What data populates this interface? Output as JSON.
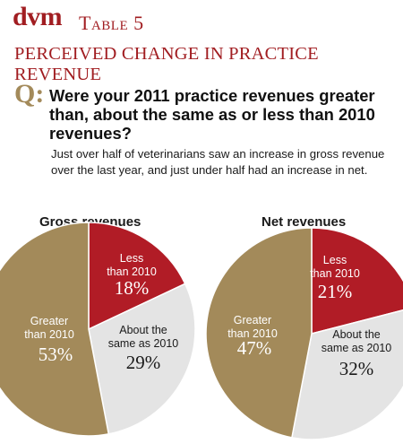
{
  "header": {
    "logo": "dvm",
    "table_label": "Table 5",
    "subtitle": "PERCEIVED CHANGE IN PRACTICE REVENUE"
  },
  "question": {
    "prefix": "Q:",
    "text": "Were your 2011 practice revenues greater than, about the same as or less than 2010 revenues?",
    "description": "Just over half of veterinarians saw an increase in gross revenue over the last year, and just under half had an increase in net."
  },
  "colors": {
    "brand_red": "#a11d21",
    "less": "#b11c26",
    "same": "#e4e4e4",
    "greater": "#a38a5a"
  },
  "chart_data": [
    {
      "type": "pie",
      "title": "Gross revenues",
      "slices": [
        {
          "label_lines": [
            "Less",
            "than 2010"
          ],
          "value": 18,
          "display": "18%",
          "color": "#b11c26",
          "text_color": "#ffffff"
        },
        {
          "label_lines": [
            "About the",
            "same as 2010"
          ],
          "value": 29,
          "display": "29%",
          "color": "#e4e4e4",
          "text_color": "#1a1a1a"
        },
        {
          "label_lines": [
            "Greater",
            "than 2010"
          ],
          "value": 53,
          "display": "53%",
          "color": "#a38a5a",
          "text_color": "#ffffff"
        }
      ]
    },
    {
      "type": "pie",
      "title": "Net revenues",
      "slices": [
        {
          "label_lines": [
            "Less",
            "than 2010"
          ],
          "value": 21,
          "display": "21%",
          "color": "#b11c26",
          "text_color": "#ffffff"
        },
        {
          "label_lines": [
            "About the",
            "same as 2010"
          ],
          "value": 32,
          "display": "32%",
          "color": "#e4e4e4",
          "text_color": "#1a1a1a"
        },
        {
          "label_lines": [
            "Greater",
            "than 2010"
          ],
          "value": 47,
          "display": "47%",
          "color": "#a38a5a",
          "text_color": "#ffffff"
        }
      ]
    }
  ]
}
